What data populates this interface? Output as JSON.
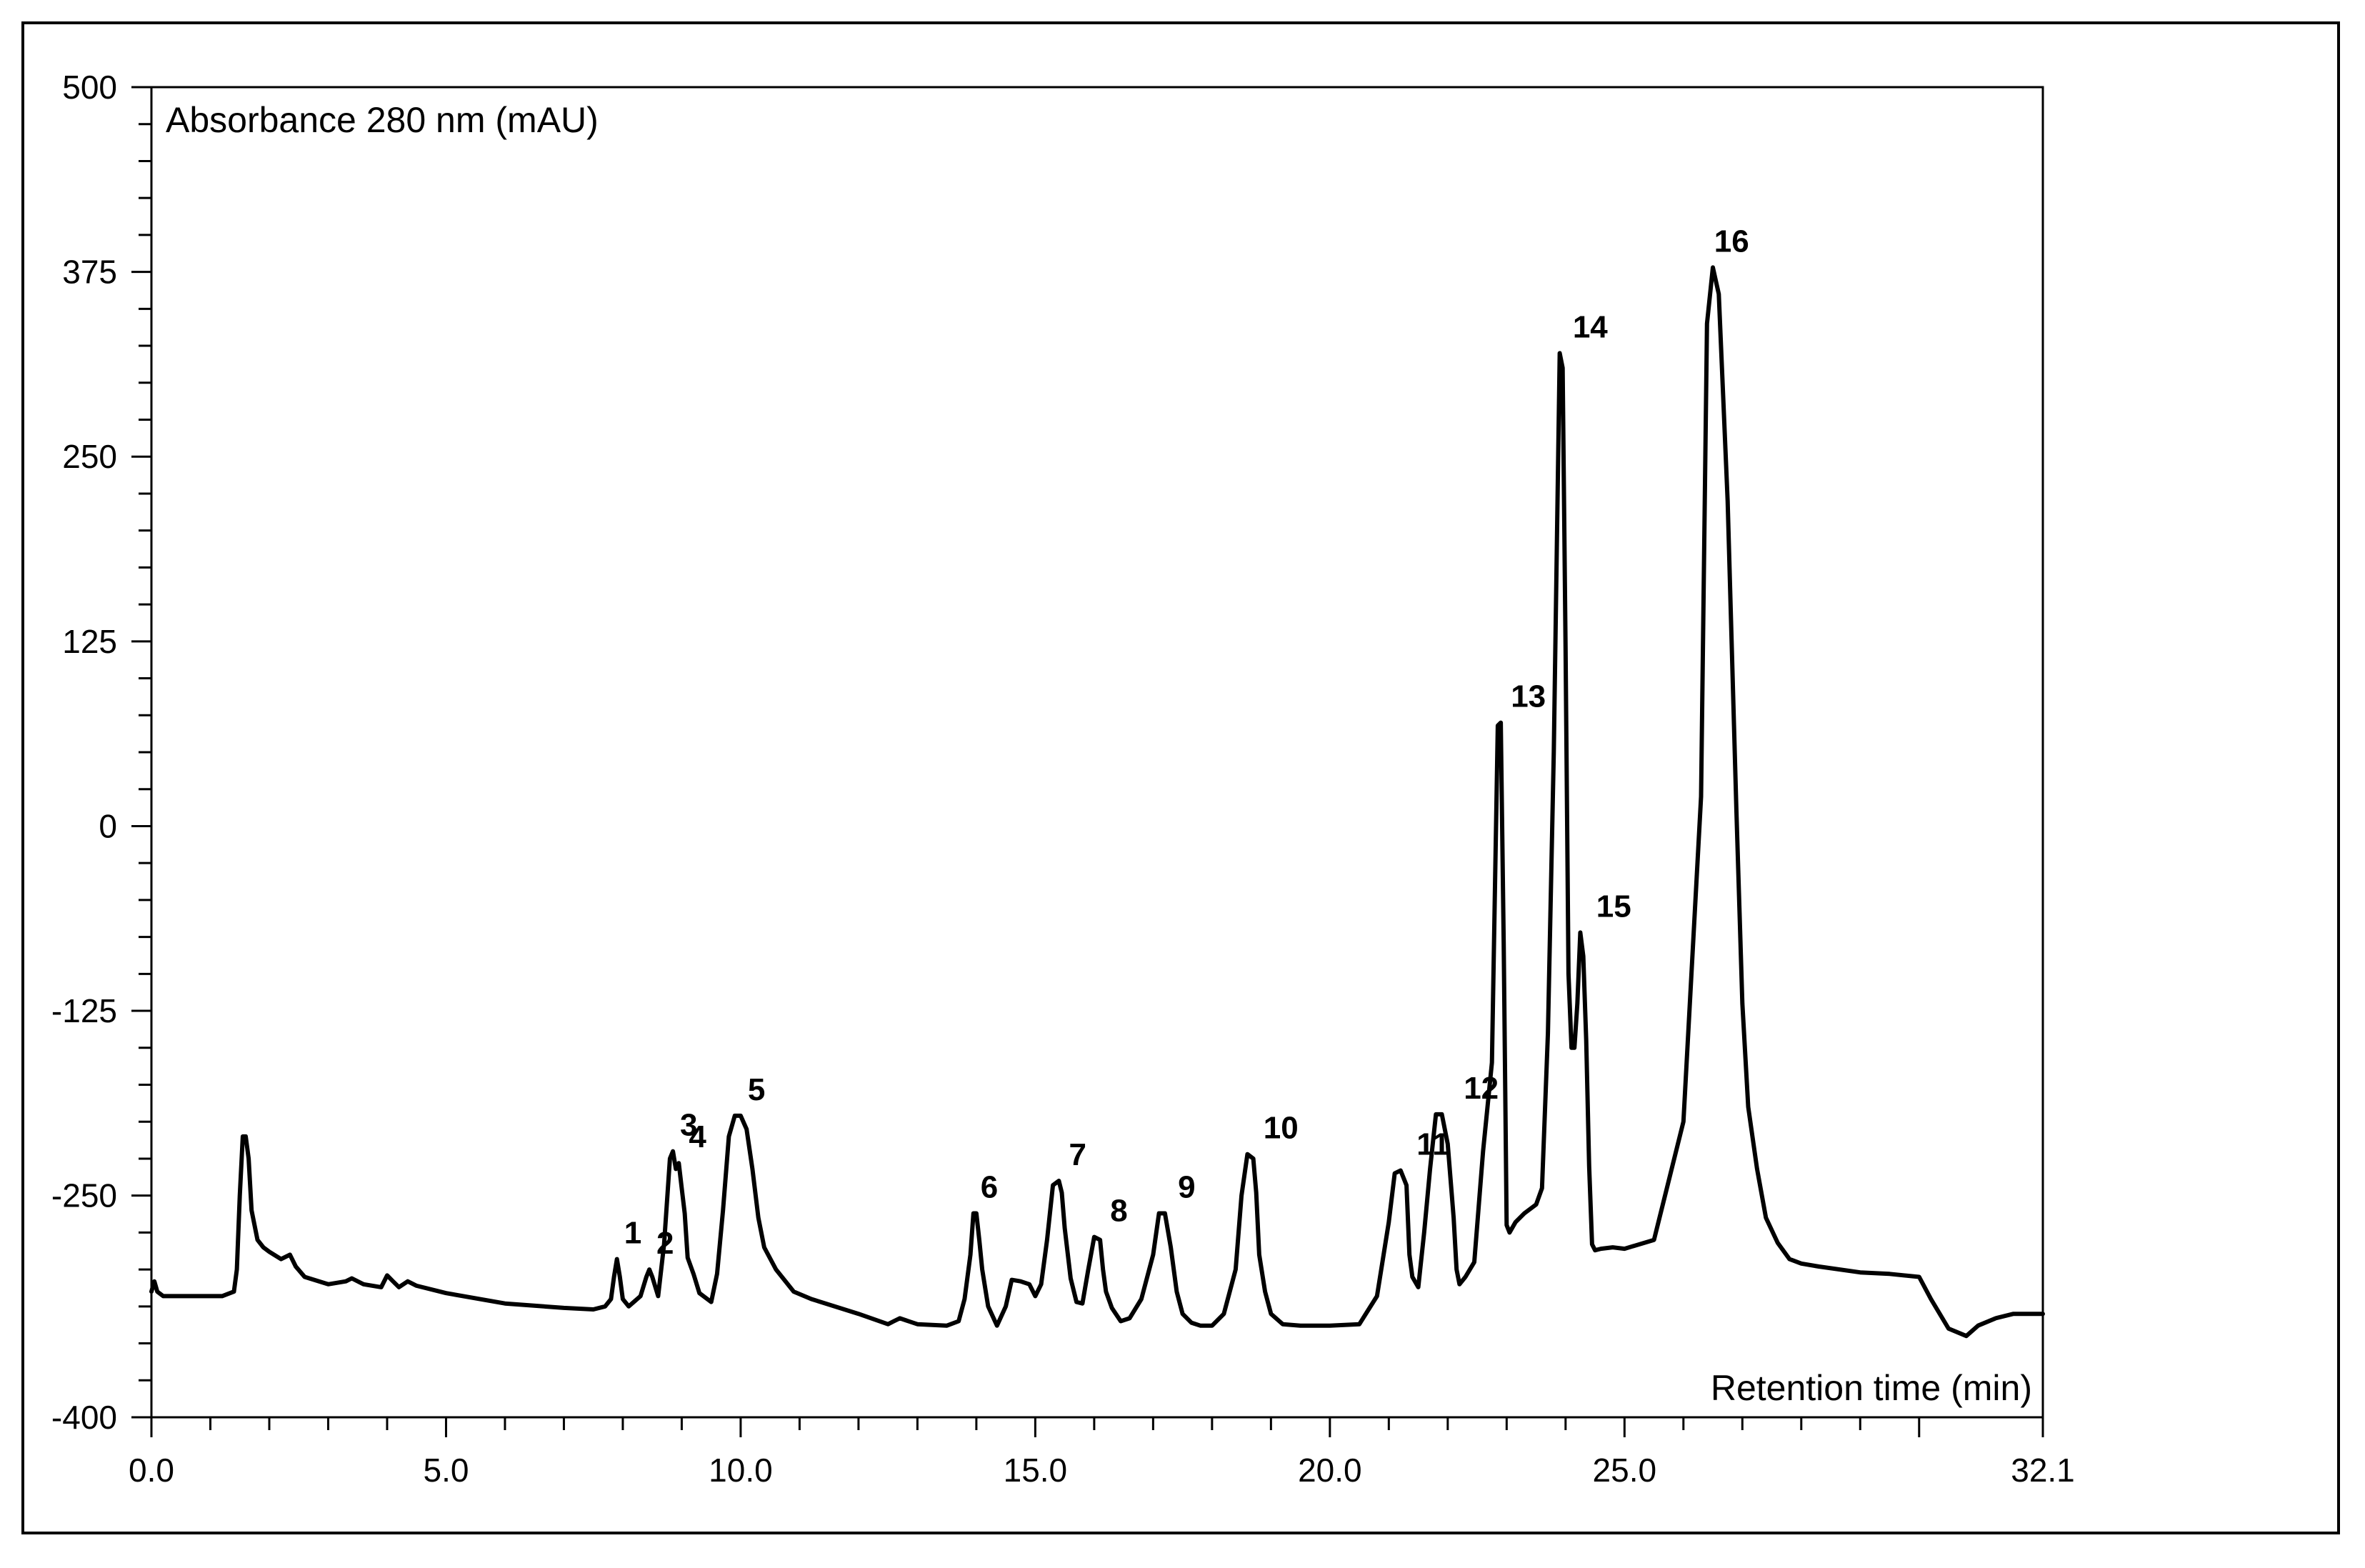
{
  "chart_data": {
    "type": "line",
    "title": "",
    "ylabel": "Absorbance 280 nm (mAU)",
    "xlabel": "Retention time (min)",
    "xlim": [
      0.0,
      32.1
    ],
    "ylim": [
      -400,
      500
    ],
    "x_ticks": [
      0.0,
      5.0,
      10.0,
      15.0,
      20.0,
      25.0,
      32.1
    ],
    "x_tick_labels": [
      "0.0",
      "5.0",
      "10.0",
      "15.0",
      "20.0",
      "25.0",
      "32.1"
    ],
    "y_ticks": [
      500,
      375,
      250,
      125,
      0,
      -125,
      -250,
      -400
    ],
    "y_tick_labels": [
      "500",
      "375",
      "250",
      "125",
      "0",
      "-125",
      "-250",
      "-400"
    ],
    "grid": false,
    "line_color": "#000000",
    "series": [
      {
        "x": [
          0.0,
          0.05,
          0.1,
          0.2,
          0.4,
          0.8,
          1.2,
          1.4,
          1.45,
          1.5,
          1.55,
          1.6,
          1.65,
          1.7,
          1.8,
          1.9,
          2.0,
          2.2,
          2.35,
          2.45,
          2.6,
          3.0,
          3.3,
          3.4,
          3.6,
          3.9,
          4.0,
          4.1,
          4.2,
          4.35,
          4.5,
          5.0,
          6.0,
          7.0,
          7.5,
          7.7,
          7.8,
          7.85,
          7.9,
          7.95,
          8.0,
          8.1,
          8.3,
          8.4,
          8.45,
          8.5,
          8.6,
          8.7,
          8.8,
          8.85,
          8.9,
          8.95,
          9.0,
          9.05,
          9.1,
          9.2,
          9.3,
          9.5,
          9.6,
          9.7,
          9.8,
          9.9,
          10.0,
          10.1,
          10.2,
          10.3,
          10.4,
          10.6,
          10.8,
          10.9,
          11.2,
          12.0,
          12.5,
          12.6,
          12.7,
          13.0,
          13.5,
          13.7,
          13.8,
          13.9,
          13.95,
          14.0,
          14.05,
          14.1,
          14.2,
          14.35,
          14.5,
          14.6,
          14.75,
          14.9,
          15.0,
          15.1,
          15.2,
          15.3,
          15.4,
          15.45,
          15.5,
          15.6,
          15.7,
          15.8,
          15.9,
          16.0,
          16.1,
          16.15,
          16.2,
          16.3,
          16.45,
          16.6,
          16.8,
          17.0,
          17.1,
          17.2,
          17.3,
          17.4,
          17.5,
          17.65,
          17.8,
          18.0,
          18.2,
          18.4,
          18.5,
          18.6,
          18.7,
          18.75,
          18.8,
          18.9,
          19.0,
          19.2,
          19.5,
          20.0,
          20.5,
          20.8,
          21.0,
          21.1,
          21.2,
          21.3,
          21.35,
          21.4,
          21.5,
          21.6,
          21.7,
          21.8,
          21.9,
          22.0,
          22.1,
          22.15,
          22.2,
          22.3,
          22.45,
          22.6,
          22.75,
          22.85,
          22.9,
          22.95,
          23.0,
          23.05,
          23.15,
          23.3,
          23.5,
          23.6,
          23.7,
          23.8,
          23.9,
          23.95,
          24.0,
          24.05,
          24.1,
          24.15,
          24.2,
          24.25,
          24.3,
          24.35,
          24.4,
          24.45,
          24.5,
          24.6,
          24.8,
          25.0,
          25.5,
          26.0,
          26.3,
          26.4,
          26.5,
          26.6,
          26.75,
          26.9,
          27.0,
          27.1,
          27.25,
          27.4,
          27.6,
          27.8,
          28.0,
          28.3,
          29.0,
          29.5,
          30.0,
          30.2,
          30.5,
          30.8,
          31.0,
          31.3,
          31.6,
          32.1
        ],
        "y": [
          -315,
          -308,
          -315,
          -318,
          -318,
          -318,
          -318,
          -315,
          -300,
          -250,
          -210,
          -210,
          -225,
          -260,
          -280,
          -285,
          -288,
          -293,
          -290,
          -298,
          -305,
          -310,
          -308,
          -306,
          -310,
          -312,
          -304,
          -308,
          -312,
          -308,
          -311,
          -316,
          -323,
          -326,
          -327,
          -325,
          -320,
          -305,
          -293,
          -305,
          -320,
          -325,
          -318,
          -305,
          -300,
          -305,
          -318,
          -283,
          -225,
          -220,
          -232,
          -228,
          -245,
          -262,
          -292,
          -303,
          -316,
          -322,
          -303,
          -260,
          -210,
          -196,
          -196,
          -205,
          -232,
          -265,
          -285,
          -300,
          -310,
          -315,
          -320,
          -330,
          -337,
          -335,
          -333,
          -337,
          -338,
          -335,
          -320,
          -290,
          -262,
          -262,
          -280,
          -300,
          -325,
          -338,
          -325,
          -307,
          -308,
          -310,
          -318,
          -310,
          -280,
          -243,
          -240,
          -248,
          -272,
          -306,
          -322,
          -323,
          -300,
          -278,
          -280,
          -300,
          -315,
          -326,
          -335,
          -333,
          -320,
          -290,
          -262,
          -262,
          -285,
          -315,
          -330,
          -336,
          -338,
          -338,
          -330,
          -300,
          -250,
          -222,
          -225,
          -248,
          -290,
          -315,
          -330,
          -337,
          -338,
          -338,
          -337,
          -318,
          -268,
          -235,
          -233,
          -243,
          -290,
          -305,
          -312,
          -275,
          -232,
          -195,
          -195,
          -215,
          -265,
          -300,
          -310,
          -305,
          -295,
          -220,
          -160,
          68,
          70,
          -80,
          -270,
          -275,
          -268,
          -262,
          -256,
          -245,
          -140,
          50,
          320,
          310,
          120,
          -100,
          -150,
          -150,
          -120,
          -72,
          -88,
          -145,
          -230,
          -283,
          -287,
          -286,
          -285,
          -286,
          -280,
          -200,
          20,
          340,
          378,
          360,
          220,
          10,
          -120,
          -190,
          -232,
          -265,
          -282,
          -293,
          -296,
          -298,
          -302,
          -303,
          -305,
          -320,
          -340,
          -345,
          -338,
          -333,
          -330,
          -330
        ]
      }
    ],
    "annotations": [
      {
        "text": "1",
        "x": 7.9,
        "y": -293
      },
      {
        "text": "2",
        "x": 8.45,
        "y": -300
      },
      {
        "text": "3",
        "x": 8.85,
        "y": -220
      },
      {
        "text": "4",
        "x": 9.0,
        "y": -228
      },
      {
        "text": "5",
        "x": 10.0,
        "y": -196
      },
      {
        "text": "6",
        "x": 13.95,
        "y": -262
      },
      {
        "text": "7",
        "x": 15.45,
        "y": -240
      },
      {
        "text": "8",
        "x": 16.15,
        "y": -278
      },
      {
        "text": "9",
        "x": 17.3,
        "y": -262
      },
      {
        "text": "10",
        "x": 18.75,
        "y": -222
      },
      {
        "text": "11",
        "x": 21.35,
        "y": -233
      },
      {
        "text": "12",
        "x": 22.15,
        "y": -195
      },
      {
        "text": "13",
        "x": 22.95,
        "y": 70
      },
      {
        "text": "14",
        "x": 24.0,
        "y": 320
      },
      {
        "text": "15",
        "x": 24.4,
        "y": -72
      },
      {
        "text": "16",
        "x": 26.4,
        "y": 378
      }
    ]
  }
}
